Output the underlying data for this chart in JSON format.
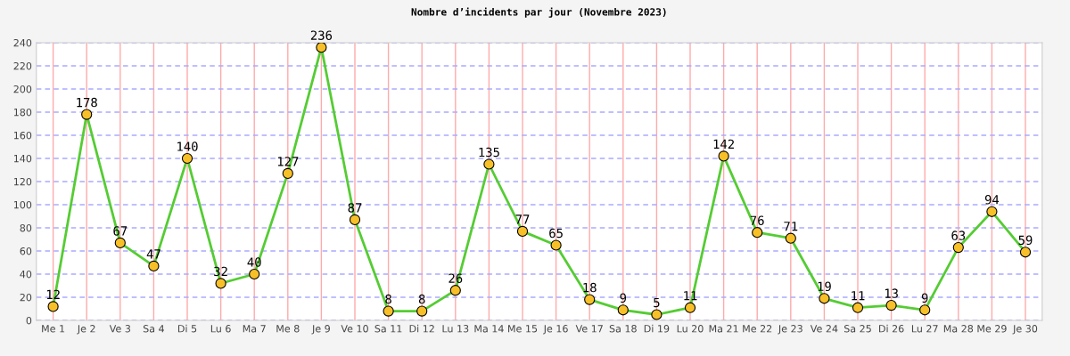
{
  "chart_data": {
    "type": "line",
    "title": "Nombre d’incidents par jour (Novembre 2023)",
    "categories": [
      "Me 1",
      "Je 2",
      "Ve 3",
      "Sa 4",
      "Di 5",
      "Lu 6",
      "Ma 7",
      "Me 8",
      "Je 9",
      "Ve 10",
      "Sa 11",
      "Di 12",
      "Lu 13",
      "Ma 14",
      "Me 15",
      "Je 16",
      "Ve 17",
      "Sa 18",
      "Di 19",
      "Lu 20",
      "Ma 21",
      "Me 22",
      "Je 23",
      "Ve 24",
      "Sa 25",
      "Di 26",
      "Lu 27",
      "Ma 28",
      "Me 29",
      "Je 30"
    ],
    "series": [
      {
        "color": "#55cc33",
        "values": [
          12,
          178,
          67,
          47,
          140,
          32,
          40,
          127,
          236,
          87,
          8,
          8,
          26,
          135,
          77,
          65,
          18,
          9,
          5,
          11,
          142,
          76,
          71,
          19,
          11,
          13,
          9,
          63,
          94,
          59
        ]
      }
    ],
    "ylim": [
      0,
      240
    ],
    "yticks": [
      0,
      20,
      40,
      60,
      80,
      100,
      120,
      140,
      160,
      180,
      200,
      220,
      240
    ],
    "grid": true,
    "marker": "circle",
    "line_style": "solid",
    "data_labels": true
  }
}
